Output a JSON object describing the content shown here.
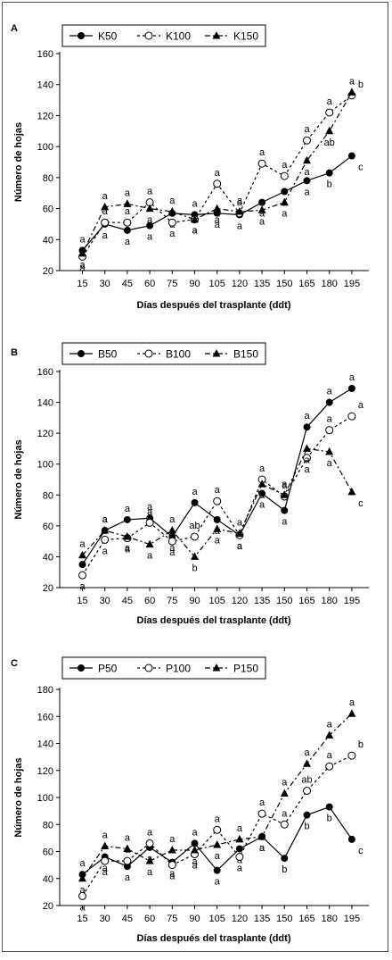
{
  "figure": {
    "x_label": "Días después del trasplante (ddt)",
    "y_label": "Número de hojas"
  },
  "chart_data": [
    {
      "type": "line",
      "panel": "A",
      "x": [
        15,
        30,
        45,
        60,
        75,
        90,
        105,
        120,
        135,
        150,
        165,
        180,
        195
      ],
      "ylim": [
        20,
        160
      ],
      "yticks": [
        20,
        40,
        60,
        80,
        100,
        120,
        140,
        160
      ],
      "grid": false,
      "legend_position": "top-left",
      "series": [
        {
          "name": "K50",
          "marker": "filled-circle",
          "line": "solid",
          "values": [
            33,
            50,
            46,
            49,
            57,
            56,
            57,
            56,
            64,
            71,
            78,
            83,
            94
          ],
          "labels": [
            "a",
            "a",
            "a",
            "a",
            "a",
            "a",
            "a",
            "a",
            "a",
            "a",
            "a",
            "b",
            "c"
          ]
        },
        {
          "name": "K100",
          "marker": "open-circle",
          "line": "dashed",
          "values": [
            29,
            51,
            51,
            64,
            51,
            53,
            76,
            57,
            89,
            81,
            104,
            122,
            133
          ],
          "labels": [
            "a",
            "a",
            "a",
            "a",
            "a",
            "a",
            "a",
            "a",
            "a",
            "a",
            "a",
            "a",
            "b"
          ]
        },
        {
          "name": "K150",
          "marker": "filled-triangle",
          "line": "dash-dot",
          "values": [
            31,
            61,
            63,
            60,
            58,
            53,
            60,
            58,
            59,
            64,
            91,
            110,
            135
          ],
          "labels": [
            "a",
            "a",
            "a",
            "a",
            "a",
            "a",
            "a",
            "a",
            "a",
            "a",
            "a",
            "ab",
            "a"
          ]
        }
      ]
    },
    {
      "type": "line",
      "panel": "B",
      "x": [
        15,
        30,
        45,
        60,
        75,
        90,
        105,
        120,
        135,
        150,
        165,
        180,
        195
      ],
      "ylim": [
        20,
        160
      ],
      "yticks": [
        20,
        40,
        60,
        80,
        100,
        120,
        140,
        160
      ],
      "grid": false,
      "legend_position": "top-left",
      "series": [
        {
          "name": "B50",
          "marker": "filled-circle",
          "line": "solid",
          "values": [
            35,
            57,
            64,
            65,
            53,
            75,
            64,
            54,
            81,
            70,
            124,
            140,
            149
          ],
          "labels": [
            "a",
            "a",
            "a",
            "a",
            "a",
            "a",
            "a",
            "a",
            "a",
            "a",
            "a",
            "a",
            "a"
          ]
        },
        {
          "name": "B100",
          "marker": "open-circle",
          "line": "dashed",
          "values": [
            28,
            51,
            52,
            62,
            50,
            53,
            76,
            54,
            90,
            79,
            104,
            122,
            131
          ],
          "labels": [
            "a",
            "a",
            "a",
            "a",
            "a",
            "ab",
            "a",
            "a",
            "a",
            "a",
            "a",
            "a",
            "a"
          ]
        },
        {
          "name": "B150",
          "marker": "filled-triangle",
          "line": "dash-dot",
          "values": [
            41,
            57,
            53,
            48,
            57,
            40,
            58,
            55,
            87,
            80,
            110,
            108,
            82
          ],
          "labels": [
            "a",
            "a",
            "a",
            "a",
            "a",
            "b",
            "a",
            "a",
            "a",
            "a",
            "a",
            "a",
            "c"
          ]
        }
      ]
    },
    {
      "type": "line",
      "panel": "C",
      "x": [
        15,
        30,
        45,
        60,
        75,
        90,
        105,
        120,
        135,
        150,
        165,
        180,
        195
      ],
      "ylim": [
        20,
        180
      ],
      "yticks": [
        20,
        40,
        60,
        80,
        100,
        120,
        140,
        160,
        180
      ],
      "grid": false,
      "legend_position": "top-left",
      "series": [
        {
          "name": "P50",
          "marker": "filled-circle",
          "line": "solid",
          "values": [
            43,
            56,
            49,
            63,
            52,
            66,
            46,
            62,
            71,
            55,
            87,
            93,
            69
          ],
          "labels": [
            "a",
            "a",
            "a",
            "a",
            "a",
            "a",
            "a",
            "a",
            "a",
            "b",
            "b",
            "b",
            "c"
          ]
        },
        {
          "name": "P100",
          "marker": "open-circle",
          "line": "dashed",
          "values": [
            27,
            53,
            53,
            66,
            50,
            58,
            76,
            56,
            88,
            80,
            105,
            123,
            131
          ],
          "labels": [
            "a",
            "a",
            "a",
            "a",
            "a",
            "a",
            "a",
            "a",
            "a",
            "a",
            "ab",
            "a",
            "b"
          ]
        },
        {
          "name": "P150",
          "marker": "filled-triangle",
          "line": "dash-dot",
          "values": [
            40,
            64,
            62,
            53,
            61,
            61,
            65,
            69,
            71,
            103,
            125,
            146,
            162
          ],
          "labels": [
            "a",
            "a",
            "a",
            "a",
            "a",
            "a",
            "a",
            "a",
            "a",
            "a",
            "a",
            "a",
            "a"
          ]
        }
      ]
    }
  ]
}
